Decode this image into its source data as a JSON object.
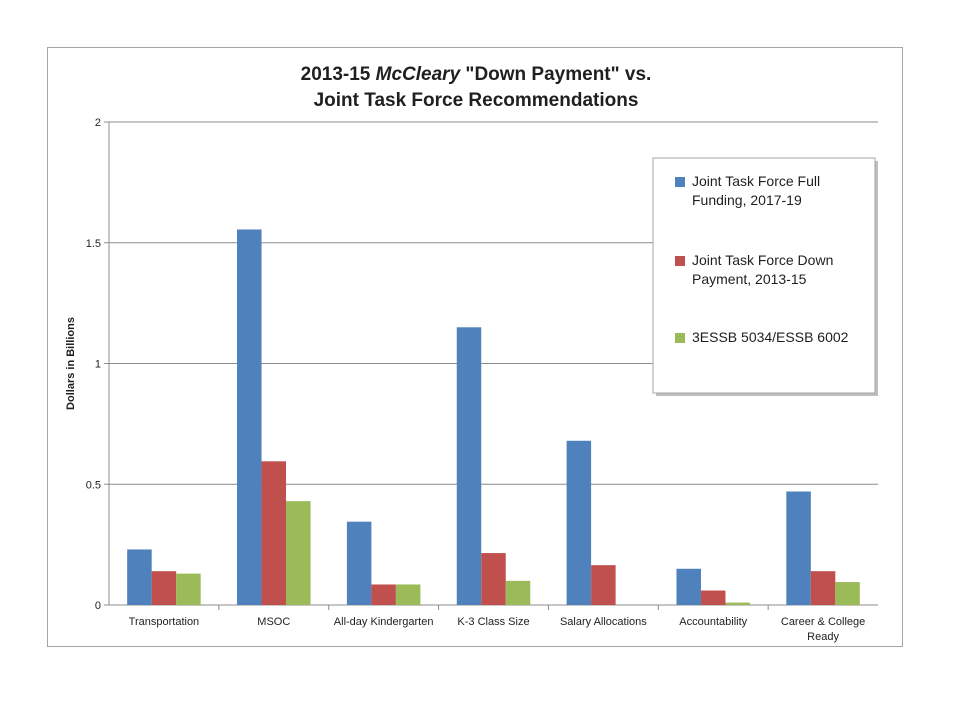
{
  "chart_data": {
    "type": "bar",
    "title_parts": [
      {
        "text": "2013-15 ",
        "italic": false
      },
      {
        "text": "McCleary",
        "italic": true
      },
      {
        "text": " \"Down Payment\" vs.",
        "italic": false
      }
    ],
    "title_line2": "Joint Task Force Recommendations",
    "ylabel": "Dollars in Billions",
    "ylim": [
      0,
      2
    ],
    "yticks": [
      0,
      0.5,
      1,
      1.5,
      2
    ],
    "ytick_labels": [
      "0",
      "0.5",
      "1",
      "1.5",
      "2"
    ],
    "grid": true,
    "legend_position": "right",
    "categories": [
      [
        "Transportation"
      ],
      [
        "MSOC"
      ],
      [
        "All-day Kindergarten"
      ],
      [
        "K-3 Class Size"
      ],
      [
        "Salary Allocations"
      ],
      [
        "Accountability"
      ],
      [
        "Career & College",
        "Ready"
      ]
    ],
    "series": [
      {
        "name_lines": [
          "Joint Task Force Full",
          "Funding, 2017-19"
        ],
        "color": "#4f81bd",
        "values": [
          0.23,
          1.555,
          0.345,
          1.15,
          0.68,
          0.15,
          0.47
        ]
      },
      {
        "name_lines": [
          "Joint Task Force Down",
          "Payment, 2013-15"
        ],
        "color": "#c0504d",
        "values": [
          0.14,
          0.595,
          0.085,
          0.215,
          0.165,
          0.06,
          0.14
        ]
      },
      {
        "name_lines": [
          "3ESSB 5034/ESSB 6002"
        ],
        "color": "#9bbb59",
        "values": [
          0.13,
          0.43,
          0.085,
          0.1,
          0,
          0.01,
          0.095
        ]
      }
    ]
  }
}
